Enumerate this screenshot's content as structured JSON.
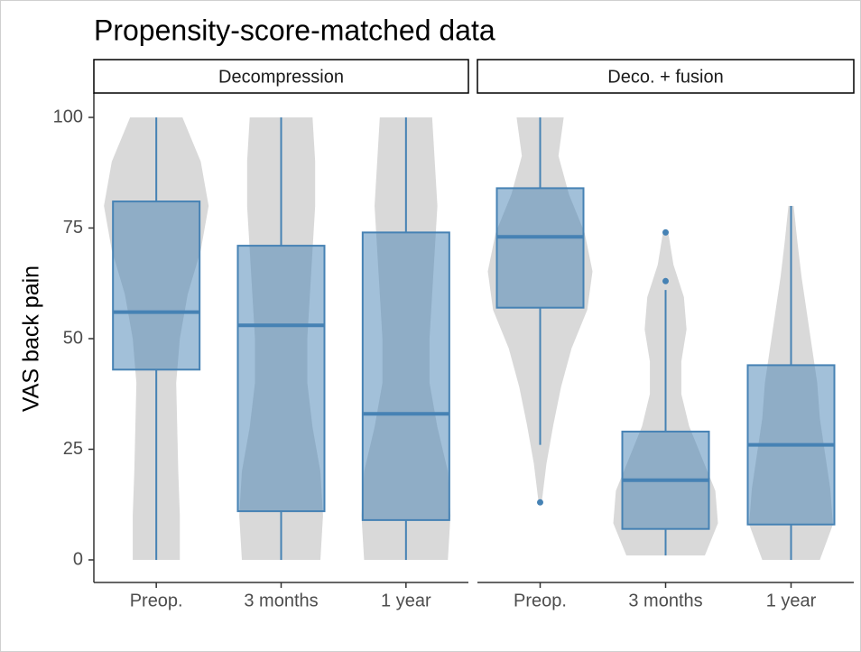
{
  "chart_data": [
    {
      "type": "box",
      "title": "Propensity-score-matched data",
      "ylabel": "VAS back pain",
      "facet": "Decompression",
      "categories": [
        "Preop.",
        "3 months",
        "1 year"
      ],
      "ylim": [
        0,
        100
      ],
      "yticks": [
        0,
        25,
        50,
        75,
        100
      ],
      "color": "#4682b4",
      "violin_color": "#d9d9d9",
      "boxes": [
        {
          "min": 0,
          "q1": 43,
          "median": 56,
          "q3": 81,
          "max": 100,
          "outliers": []
        },
        {
          "min": 0,
          "q1": 11,
          "median": 53,
          "q3": 71,
          "max": 100,
          "outliers": []
        },
        {
          "min": 0,
          "q1": 9,
          "median": 33,
          "q3": 74,
          "max": 100,
          "outliers": []
        }
      ],
      "violins": [
        {
          "range": [
            0,
            100
          ],
          "density": [
            0.45,
            0.45,
            0.42,
            0.4,
            0.38,
            0.45,
            0.6,
            0.85,
            1,
            0.85,
            0.5
          ]
        },
        {
          "range": [
            0,
            100
          ],
          "density": [
            0.75,
            0.8,
            0.75,
            0.6,
            0.5,
            0.5,
            0.55,
            0.6,
            0.65,
            0.65,
            0.6
          ]
        },
        {
          "range": [
            0,
            100
          ],
          "density": [
            0.8,
            0.85,
            0.8,
            0.6,
            0.45,
            0.45,
            0.5,
            0.55,
            0.6,
            0.55,
            0.5
          ]
        }
      ]
    },
    {
      "type": "box",
      "facet": "Deco. + fusion",
      "categories": [
        "Preop.",
        "3 months",
        "1 year"
      ],
      "ylim": [
        0,
        100
      ],
      "color": "#4682b4",
      "violin_color": "#d9d9d9",
      "boxes": [
        {
          "min": 26,
          "q1": 57,
          "median": 73,
          "q3": 84,
          "max": 100,
          "outliers": [
            13
          ]
        },
        {
          "min": 1,
          "q1": 7,
          "median": 18,
          "q3": 29,
          "max": 61,
          "outliers": [
            63,
            74
          ]
        },
        {
          "min": 0,
          "q1": 8,
          "median": 26,
          "q3": 44,
          "max": 80,
          "outliers": []
        }
      ],
      "violins": [
        {
          "range": [
            13,
            100
          ],
          "density": [
            0.03,
            0.12,
            0.25,
            0.4,
            0.6,
            0.9,
            1,
            0.85,
            0.55,
            0.35,
            0.45
          ]
        },
        {
          "range": [
            1,
            74
          ],
          "density": [
            0.75,
            1,
            0.95,
            0.7,
            0.45,
            0.3,
            0.3,
            0.4,
            0.35,
            0.15,
            0.05
          ]
        },
        {
          "range": [
            0,
            80
          ],
          "density": [
            0.55,
            0.8,
            0.75,
            0.65,
            0.55,
            0.5,
            0.4,
            0.3,
            0.2,
            0.12,
            0.05
          ]
        }
      ]
    }
  ]
}
